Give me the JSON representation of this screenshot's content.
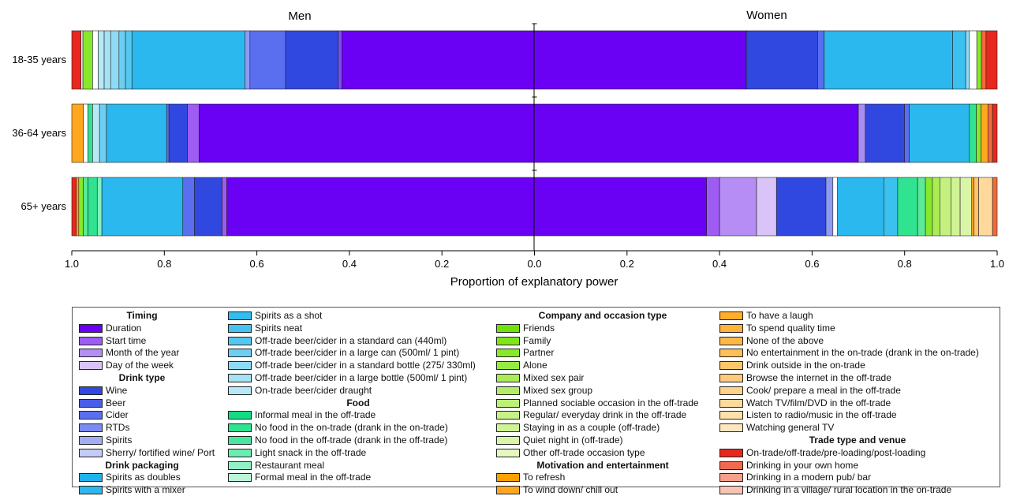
{
  "chart_data": {
    "type": "bar",
    "orientation": "horizontal",
    "stacked": true,
    "panel_labels": [
      "Men",
      "Women"
    ],
    "categories": [
      "18-35 years",
      "36-64 years",
      "65+ years"
    ],
    "xlabel": "Proportion of explanatory power",
    "x_ticks": [
      "1.0",
      "0.8",
      "0.6",
      "0.4",
      "0.2",
      "0.0",
      "0.2",
      "0.4",
      "0.6",
      "0.8",
      "1.0"
    ],
    "xlim": [
      -1.0,
      1.0
    ],
    "grid": false,
    "legend_position": "bottom",
    "rows": [
      {
        "category": "18-35 years",
        "segments": [
          {
            "from": -1.0,
            "to": -0.98,
            "color": "#e8281e"
          },
          {
            "from": -0.98,
            "to": -0.976,
            "color": "#ffffff"
          },
          {
            "from": -0.976,
            "to": -0.955,
            "color": "#86ea2a"
          },
          {
            "from": -0.955,
            "to": -0.943,
            "color": "#ffffff"
          },
          {
            "from": -0.943,
            "to": -0.93,
            "color": "#b6e8f7"
          },
          {
            "from": -0.93,
            "to": -0.916,
            "color": "#a4e2f6"
          },
          {
            "from": -0.916,
            "to": -0.898,
            "color": "#8fdbf5"
          },
          {
            "from": -0.898,
            "to": -0.884,
            "color": "#6ccff2"
          },
          {
            "from": -0.884,
            "to": -0.87,
            "color": "#54c8f0"
          },
          {
            "from": -0.87,
            "to": -0.626,
            "color": "#2ab8ee"
          },
          {
            "from": -0.626,
            "to": -0.615,
            "color": "#8e9bf0"
          },
          {
            "from": -0.615,
            "to": -0.538,
            "color": "#5a6ef0"
          },
          {
            "from": -0.538,
            "to": -0.424,
            "color": "#3048e0"
          },
          {
            "from": -0.424,
            "to": -0.416,
            "color": "#7a4ef2"
          },
          {
            "from": -0.416,
            "to": 0.458,
            "color": "#6a00f4"
          },
          {
            "from": 0.458,
            "to": 0.612,
            "color": "#3048e0"
          },
          {
            "from": 0.612,
            "to": 0.626,
            "color": "#5a6ef0"
          },
          {
            "from": 0.626,
            "to": 0.904,
            "color": "#2ab8ee"
          },
          {
            "from": 0.904,
            "to": 0.932,
            "color": "#3cc0ef"
          },
          {
            "from": 0.932,
            "to": 0.94,
            "color": "#8fdbf5"
          },
          {
            "from": 0.94,
            "to": 0.956,
            "color": "#ffffff"
          },
          {
            "from": 0.956,
            "to": 0.966,
            "color": "#86ea2a"
          },
          {
            "from": 0.966,
            "to": 0.976,
            "color": "#f16a3a"
          },
          {
            "from": 0.976,
            "to": 1.0,
            "color": "#e8281e"
          }
        ]
      },
      {
        "category": "36-64 years",
        "segments": [
          {
            "from": -1.0,
            "to": -0.975,
            "color": "#ffa81f"
          },
          {
            "from": -0.975,
            "to": -0.965,
            "color": "#ffffff"
          },
          {
            "from": -0.965,
            "to": -0.955,
            "color": "#2fe391"
          },
          {
            "from": -0.955,
            "to": -0.94,
            "color": "#b6e8f7"
          },
          {
            "from": -0.94,
            "to": -0.925,
            "color": "#6ccff2"
          },
          {
            "from": -0.925,
            "to": -0.795,
            "color": "#2ab8ee"
          },
          {
            "from": -0.795,
            "to": -0.79,
            "color": "#5a6ef0"
          },
          {
            "from": -0.79,
            "to": -0.75,
            "color": "#3048e0"
          },
          {
            "from": -0.75,
            "to": -0.725,
            "color": "#9f5cf3"
          },
          {
            "from": -0.725,
            "to": 0.7,
            "color": "#6a00f4"
          },
          {
            "from": 0.7,
            "to": 0.715,
            "color": "#a88ef2"
          },
          {
            "from": 0.715,
            "to": 0.8,
            "color": "#3048e0"
          },
          {
            "from": 0.8,
            "to": 0.81,
            "color": "#5a6ef0"
          },
          {
            "from": 0.81,
            "to": 0.94,
            "color": "#2ab8ee"
          },
          {
            "from": 0.94,
            "to": 0.955,
            "color": "#2fe391"
          },
          {
            "from": 0.955,
            "to": 0.965,
            "color": "#86ea2a"
          },
          {
            "from": 0.965,
            "to": 0.98,
            "color": "#ffa81f"
          },
          {
            "from": 0.98,
            "to": 0.99,
            "color": "#f16a3a"
          },
          {
            "from": 0.99,
            "to": 1.0,
            "color": "#e8281e"
          }
        ]
      },
      {
        "category": "65+ years",
        "segments": [
          {
            "from": -1.0,
            "to": -0.99,
            "color": "#e8281e"
          },
          {
            "from": -0.99,
            "to": -0.985,
            "color": "#ffa81f"
          },
          {
            "from": -0.985,
            "to": -0.975,
            "color": "#86ea2a"
          },
          {
            "from": -0.975,
            "to": -0.965,
            "color": "#5bea98"
          },
          {
            "from": -0.965,
            "to": -0.945,
            "color": "#2fe391"
          },
          {
            "from": -0.945,
            "to": -0.935,
            "color": "#86f1bd"
          },
          {
            "from": -0.935,
            "to": -0.76,
            "color": "#2ab8ee"
          },
          {
            "from": -0.76,
            "to": -0.735,
            "color": "#5a6ef0"
          },
          {
            "from": -0.735,
            "to": -0.675,
            "color": "#3048e0"
          },
          {
            "from": -0.675,
            "to": -0.665,
            "color": "#9f5cf3"
          },
          {
            "from": -0.665,
            "to": 0.372,
            "color": "#6a00f4"
          },
          {
            "from": 0.372,
            "to": 0.4,
            "color": "#9f5cf3"
          },
          {
            "from": 0.4,
            "to": 0.48,
            "color": "#b68df5"
          },
          {
            "from": 0.48,
            "to": 0.523,
            "color": "#d9c3f8"
          },
          {
            "from": 0.523,
            "to": 0.63,
            "color": "#3048e0"
          },
          {
            "from": 0.63,
            "to": 0.645,
            "color": "#8e9bf0"
          },
          {
            "from": 0.645,
            "to": 0.655,
            "color": "#ffffff"
          },
          {
            "from": 0.655,
            "to": 0.755,
            "color": "#2ab8ee"
          },
          {
            "from": 0.755,
            "to": 0.785,
            "color": "#3cc0ef"
          },
          {
            "from": 0.785,
            "to": 0.828,
            "color": "#2fe391"
          },
          {
            "from": 0.828,
            "to": 0.845,
            "color": "#5bea98"
          },
          {
            "from": 0.845,
            "to": 0.86,
            "color": "#86ea2a"
          },
          {
            "from": 0.86,
            "to": 0.876,
            "color": "#a9ec55"
          },
          {
            "from": 0.876,
            "to": 0.9,
            "color": "#c3f07e"
          },
          {
            "from": 0.9,
            "to": 0.92,
            "color": "#d0f396"
          },
          {
            "from": 0.92,
            "to": 0.945,
            "color": "#d9f5a8"
          },
          {
            "from": 0.945,
            "to": 0.95,
            "color": "#ffa81f"
          },
          {
            "from": 0.95,
            "to": 0.96,
            "color": "#ffc56a"
          },
          {
            "from": 0.96,
            "to": 0.99,
            "color": "#ffd99b"
          },
          {
            "from": 0.99,
            "to": 1.0,
            "color": "#f16a3a"
          }
        ]
      }
    ],
    "legend": [
      {
        "groups": [
          {
            "heading": "Timing",
            "items": [
              {
                "label": "Duration",
                "color": "#6a00f4"
              },
              {
                "label": "Start time",
                "color": "#9f5cf3"
              },
              {
                "label": "Month of the year",
                "color": "#b68df5"
              },
              {
                "label": "Day of the week",
                "color": "#d9c3f8"
              }
            ]
          },
          {
            "heading": "Drink type",
            "items": [
              {
                "label": "Wine",
                "color": "#3048e0"
              },
              {
                "label": "Beer",
                "color": "#4a5ee8"
              },
              {
                "label": "Cider",
                "color": "#5a6ef0"
              },
              {
                "label": "RTDs",
                "color": "#7b8bf2"
              },
              {
                "label": "Spirits",
                "color": "#a3adf4"
              },
              {
                "label": "Sherry/ fortified wine/ Port",
                "color": "#c5cbf7"
              }
            ]
          },
          {
            "heading": "Drink packaging",
            "items": [
              {
                "label": "Spirits as doubles",
                "color": "#1fb3ec"
              },
              {
                "label": "Spirits with a mixer",
                "color": "#2ab8ee"
              }
            ]
          }
        ]
      },
      {
        "groups": [
          {
            "heading": "",
            "items": [
              {
                "label": "Spirits as a shot",
                "color": "#34bcee"
              },
              {
                "label": "Spirits neat",
                "color": "#45c3ef"
              },
              {
                "label": "Off-trade beer/cider in a standard can (440ml)",
                "color": "#54c8f0"
              },
              {
                "label": "Off-trade beer/cider in a large can (500ml/ 1 pint)",
                "color": "#6ccff2"
              },
              {
                "label": "Off-trade beer/cider in a standard bottle (275/ 330ml)",
                "color": "#8fdbf5"
              },
              {
                "label": "Off-trade beer/cider in a large bottle (500ml/ 1 pint)",
                "color": "#a4e2f6"
              },
              {
                "label": "On-trade beer/cider draught",
                "color": "#b6e8f7"
              }
            ]
          },
          {
            "heading": "Food",
            "items": [
              {
                "label": "Informal meal in the off-trade",
                "color": "#14dc84"
              },
              {
                "label": "No food in the on-trade (drank in the on-trade)",
                "color": "#2fe391"
              },
              {
                "label": "No food in the off-trade (drank in the off-trade)",
                "color": "#48e79f"
              },
              {
                "label": "Light snack in the off-trade",
                "color": "#6cecb0"
              },
              {
                "label": "Restaurant meal",
                "color": "#92f2c5"
              },
              {
                "label": "Formal meal in the off-trade",
                "color": "#b9f6d8"
              }
            ]
          }
        ]
      },
      {
        "groups": [
          {
            "heading": "Company and occasion type",
            "items": [
              {
                "label": "Friends",
                "color": "#6fe20c"
              },
              {
                "label": "Family",
                "color": "#7ee61b"
              },
              {
                "label": "Partner",
                "color": "#86ea2a"
              },
              {
                "label": "Alone",
                "color": "#97ec44"
              },
              {
                "label": "Mixed sex pair",
                "color": "#a9ec55"
              },
              {
                "label": "Mixed sex group",
                "color": "#b4ee69"
              },
              {
                "label": "Planned sociable occasion in the off-trade",
                "color": "#bdf077"
              },
              {
                "label": "Regular/ everyday drink in the off-trade",
                "color": "#c7f287"
              },
              {
                "label": "Staying in as a couple (off-trade)",
                "color": "#d0f396"
              },
              {
                "label": "Quiet night in (off-trade)",
                "color": "#d9f5a8"
              },
              {
                "label": "Other off-trade occasion type",
                "color": "#e4f8c0"
              }
            ]
          },
          {
            "heading": "Motivation and entertainment",
            "items": [
              {
                "label": "To refresh",
                "color": "#ffa000"
              },
              {
                "label": "To wind down/ chill out",
                "color": "#ffa81f"
              }
            ]
          }
        ]
      },
      {
        "groups": [
          {
            "heading": "",
            "items": [
              {
                "label": "To have a laugh",
                "color": "#ffad2a"
              },
              {
                "label": "To spend quality time",
                "color": "#ffb338"
              },
              {
                "label": "None of the above",
                "color": "#ffb848"
              },
              {
                "label": "No entertainment in the on-trade (drank in the on-trade)",
                "color": "#ffbf58"
              },
              {
                "label": "Drink outside in the on-trade",
                "color": "#ffc56a"
              },
              {
                "label": "Browse the internet in the off-trade",
                "color": "#ffcb7a"
              },
              {
                "label": "Cook/ prepare a meal in the off-trade",
                "color": "#ffd28b"
              },
              {
                "label": "Watch TV/film/DVD in the off-trade",
                "color": "#ffd99b"
              },
              {
                "label": "Listen to radio/music in the off-trade",
                "color": "#ffdfac"
              },
              {
                "label": "Watching general TV",
                "color": "#ffe6bf"
              }
            ]
          },
          {
            "heading": "Trade type and venue",
            "items": [
              {
                "label": "On-trade/off-trade/pre-loading/post-loading",
                "color": "#e8281e"
              },
              {
                "label": "Drinking in your own home",
                "color": "#f16a4e"
              },
              {
                "label": "Drinking in a modern pub/ bar",
                "color": "#f69f8a"
              },
              {
                "label": "Drinking in a village/ rural location in the on-trade",
                "color": "#f9c3b4"
              }
            ]
          }
        ]
      }
    ]
  }
}
